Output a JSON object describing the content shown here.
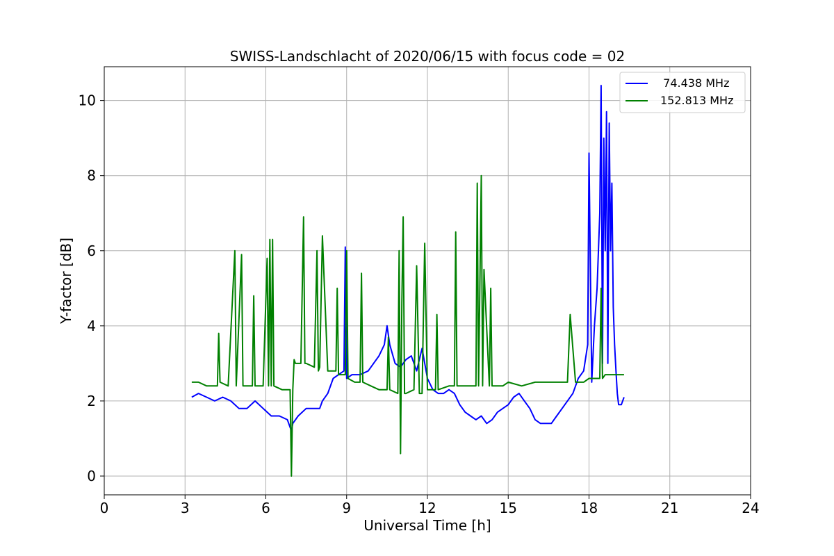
{
  "chart_data": {
    "type": "line",
    "title": "SWISS-Landschlacht of 2020/06/15 with focus code = 02",
    "xlabel": "Universal Time [h]",
    "ylabel": "Y-factor [dB]",
    "xlim": [
      0,
      24
    ],
    "ylim": [
      -0.5,
      10.9
    ],
    "xticks": [
      0,
      3,
      6,
      9,
      12,
      15,
      18,
      21,
      24
    ],
    "yticks": [
      0,
      2,
      4,
      6,
      8,
      10
    ],
    "grid": true,
    "legend_position": "upper-right",
    "series": [
      {
        "name": "  74.438 MHz",
        "color": "#0000ff",
        "x": [
          3.25,
          3.5,
          3.8,
          4.1,
          4.4,
          4.7,
          5.0,
          5.3,
          5.6,
          5.9,
          6.2,
          6.5,
          6.8,
          6.95,
          7.0,
          7.2,
          7.5,
          7.8,
          8.0,
          8.1,
          8.3,
          8.5,
          8.7,
          8.9,
          8.95,
          9.0,
          9.2,
          9.5,
          9.8,
          10.0,
          10.2,
          10.4,
          10.5,
          10.6,
          10.8,
          11.0,
          11.2,
          11.4,
          11.6,
          11.8,
          12.0,
          12.2,
          12.4,
          12.6,
          12.8,
          13.0,
          13.2,
          13.4,
          13.6,
          13.8,
          14.0,
          14.2,
          14.4,
          14.6,
          14.8,
          15.0,
          15.2,
          15.4,
          15.6,
          15.8,
          16.0,
          16.2,
          16.4,
          16.6,
          16.8,
          17.0,
          17.2,
          17.4,
          17.6,
          17.8,
          17.95,
          18.0,
          18.1,
          18.2,
          18.3,
          18.4,
          18.45,
          18.5,
          18.55,
          18.6,
          18.65,
          18.7,
          18.75,
          18.8,
          18.85,
          18.9,
          18.95,
          19.0,
          19.05,
          19.1,
          19.2,
          19.3
        ],
        "values": [
          2.1,
          2.2,
          2.1,
          2.0,
          2.1,
          2.0,
          1.8,
          1.8,
          2.0,
          1.8,
          1.6,
          1.6,
          1.5,
          1.2,
          1.4,
          1.6,
          1.8,
          1.8,
          1.8,
          2.0,
          2.2,
          2.6,
          2.7,
          2.8,
          6.1,
          2.6,
          2.7,
          2.7,
          2.8,
          3.0,
          3.2,
          3.5,
          4.0,
          3.5,
          3.0,
          2.9,
          3.1,
          3.2,
          2.8,
          3.4,
          2.6,
          2.3,
          2.2,
          2.2,
          2.3,
          2.2,
          1.9,
          1.7,
          1.6,
          1.5,
          1.6,
          1.4,
          1.5,
          1.7,
          1.8,
          1.9,
          2.1,
          2.2,
          2.0,
          1.8,
          1.5,
          1.4,
          1.4,
          1.4,
          1.6,
          1.8,
          2.0,
          2.2,
          2.6,
          2.8,
          3.5,
          8.6,
          2.5,
          4.0,
          5.0,
          7.0,
          10.4,
          3.0,
          9.0,
          6.0,
          9.7,
          3.0,
          9.4,
          6.0,
          7.8,
          4.5,
          3.5,
          2.8,
          2.2,
          1.9,
          1.9,
          2.1
        ]
      },
      {
        "name": "152.813 MHz",
        "color": "#008000",
        "x": [
          3.25,
          3.5,
          3.8,
          4.2,
          4.25,
          4.3,
          4.6,
          4.85,
          4.9,
          5.1,
          5.15,
          5.2,
          5.5,
          5.55,
          5.6,
          5.9,
          6.05,
          6.1,
          6.15,
          6.2,
          6.25,
          6.3,
          6.6,
          6.9,
          6.95,
          7.0,
          7.05,
          7.1,
          7.3,
          7.4,
          7.45,
          7.5,
          7.8,
          7.9,
          7.95,
          8.0,
          8.1,
          8.3,
          8.6,
          8.65,
          8.7,
          8.95,
          9.0,
          9.05,
          9.3,
          9.5,
          9.55,
          9.6,
          9.9,
          10.2,
          10.5,
          10.55,
          10.6,
          10.9,
          10.95,
          11.0,
          11.05,
          11.1,
          11.15,
          11.2,
          11.5,
          11.6,
          11.7,
          11.8,
          11.9,
          12.0,
          12.3,
          12.35,
          12.4,
          12.8,
          13.0,
          13.05,
          13.1,
          13.3,
          13.8,
          13.85,
          13.9,
          14.0,
          14.05,
          14.1,
          14.3,
          14.35,
          14.4,
          14.8,
          15.0,
          15.5,
          16.0,
          16.5,
          17.0,
          17.2,
          17.3,
          17.5,
          17.8,
          18.0,
          18.2,
          18.4,
          18.45,
          18.5,
          18.6,
          18.8,
          19.0,
          19.2,
          19.3
        ],
        "values": [
          2.5,
          2.5,
          2.4,
          2.4,
          3.8,
          2.5,
          2.4,
          6.0,
          2.4,
          5.9,
          2.4,
          2.4,
          2.4,
          4.8,
          2.4,
          2.4,
          5.8,
          2.4,
          6.3,
          2.4,
          6.3,
          2.4,
          2.3,
          2.3,
          0.0,
          2.3,
          3.1,
          3.0,
          3.0,
          6.9,
          3.0,
          3.0,
          2.9,
          6.0,
          2.8,
          2.9,
          6.4,
          2.8,
          2.8,
          5.0,
          2.7,
          2.7,
          6.0,
          2.6,
          2.5,
          2.5,
          5.4,
          2.5,
          2.4,
          2.3,
          2.3,
          3.7,
          2.3,
          2.2,
          6.0,
          0.6,
          4.6,
          6.9,
          2.2,
          2.2,
          2.3,
          5.6,
          2.2,
          2.2,
          6.2,
          2.3,
          2.3,
          4.3,
          2.3,
          2.4,
          2.4,
          6.5,
          2.4,
          2.4,
          2.4,
          7.8,
          2.4,
          8.0,
          2.4,
          5.5,
          2.4,
          5.0,
          2.4,
          2.4,
          2.5,
          2.4,
          2.5,
          2.5,
          2.5,
          2.5,
          4.3,
          2.5,
          2.5,
          2.6,
          2.6,
          2.6,
          5.0,
          2.6,
          2.7,
          2.7,
          2.7,
          2.7,
          2.7
        ]
      }
    ]
  }
}
